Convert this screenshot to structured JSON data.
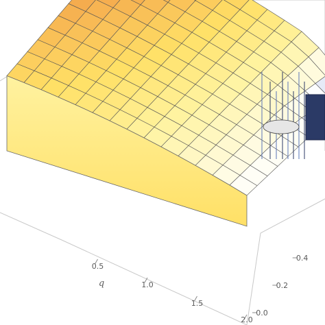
{
  "chart_data": {
    "type": "surface",
    "title": "",
    "colormap": [
      "#4a6cc4",
      "#ffffff",
      "#fff3a0",
      "#ffe066",
      "#f6b050",
      "#ef8a3c"
    ],
    "axes": {
      "q": {
        "label": "q",
        "range": [
          0.0,
          2.0
        ],
        "ticks": [
          {
            "value": 0.5,
            "label": "0.5"
          },
          {
            "value": 1.0,
            "label": "1.0"
          },
          {
            "value": 1.5,
            "label": "1.5"
          },
          {
            "value": 2.0,
            "label": "2.0"
          }
        ]
      },
      "depth": {
        "label": "",
        "range": [
          0.0,
          0.6
        ],
        "ticks": [
          {
            "value": 0.0,
            "label": "0.0"
          },
          {
            "value": 0.2,
            "label": "0.2"
          },
          {
            "value": 0.4,
            "label": "0.4"
          }
        ]
      }
    },
    "surface": {
      "q_samples": [
        0.0,
        0.22,
        0.44,
        0.67,
        0.89,
        1.11,
        1.33,
        1.56,
        1.78,
        2.0
      ],
      "depth_samples": [
        0.6,
        0.53,
        0.47,
        0.4,
        0.33,
        0.27,
        0.2,
        0.13,
        0.07,
        0.0
      ],
      "height_range": [
        0,
        1
      ],
      "note_shape": "high ridge at small depth, falls off toward large q; steep dropout region at large q and large depth"
    },
    "grid": true
  }
}
